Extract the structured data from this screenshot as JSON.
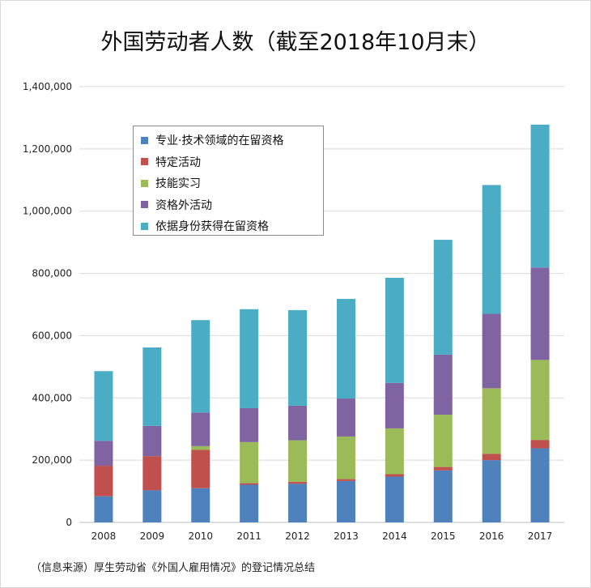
{
  "title": "外国劳动者人数（截至2018年10月末）",
  "source": "（信息来源）厚生劳动省《外国人雇用情况》的登记情况总结",
  "chart_data": {
    "type": "bar",
    "stacked": true,
    "categories": [
      "2008",
      "2009",
      "2010",
      "2011",
      "2012",
      "2013",
      "2014",
      "2015",
      "2016",
      "2017"
    ],
    "y_ticks": [
      "0",
      "200,000",
      "400,000",
      "600,000",
      "800,000",
      "1,000,000",
      "1,200,000",
      "1,400,000"
    ],
    "ylim": [
      0,
      1400000
    ],
    "grid": true,
    "legend_position": "top-left",
    "series": [
      {
        "name": "专业·技术领域的在留资格",
        "color": "#4f81bd",
        "values": [
          84000,
          103000,
          110000,
          121000,
          124000,
          133000,
          147000,
          167000,
          200000,
          238000
        ]
      },
      {
        "name": "特定活动",
        "color": "#c0504d",
        "values": [
          98000,
          110000,
          123000,
          5000,
          6000,
          6000,
          8000,
          11000,
          20000,
          27000
        ]
      },
      {
        "name": "技能实习",
        "color": "#9bbb59",
        "values": [
          0,
          0,
          12000,
          132000,
          134000,
          137000,
          147000,
          168000,
          211000,
          257000
        ]
      },
      {
        "name": "资格外活动",
        "color": "#8064a2",
        "values": [
          80000,
          97000,
          108000,
          109000,
          111000,
          122000,
          146000,
          193000,
          239000,
          297000
        ]
      },
      {
        "name": "依据身份获得在留资格",
        "color": "#4bacc6",
        "values": [
          224000,
          252000,
          297000,
          318000,
          307000,
          320000,
          338000,
          369000,
          414000,
          459000
        ]
      }
    ]
  }
}
